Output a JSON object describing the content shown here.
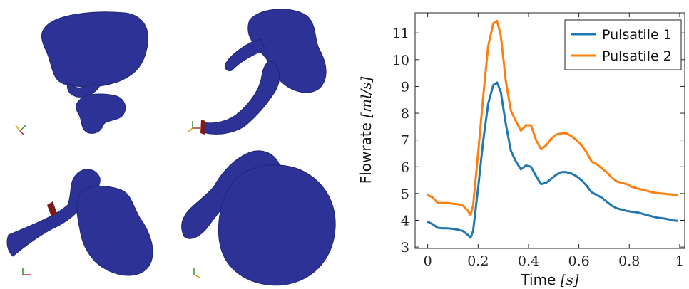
{
  "renders": [
    {
      "name": "aneurysm-render-top-left"
    },
    {
      "name": "aneurysm-render-top-right"
    },
    {
      "name": "aneurysm-render-bottom-left"
    },
    {
      "name": "aneurysm-render-bottom-right"
    }
  ],
  "colors": {
    "vessel": "#2d3396",
    "vessel_dark": "#1f2478",
    "vessel_highlight": "#4a52b8",
    "inlet_marker": "#7a1a1a",
    "axis": "#222222",
    "series1": "#1f77b4",
    "series2": "#ff7f0e"
  },
  "chart_data": {
    "type": "line",
    "title": "",
    "xlabel": "Time",
    "xlabel_unit": "[s]",
    "ylabel": "Flowrate",
    "ylabel_unit": "[ml/s]",
    "xlim": [
      -0.05,
      1.02
    ],
    "ylim": [
      2.95,
      11.75
    ],
    "xticks": [
      0,
      0.2,
      0.4,
      0.6,
      0.8,
      1
    ],
    "xtick_labels": [
      "0",
      "0.2",
      "0.4",
      "0.6",
      "0.8",
      "1"
    ],
    "yticks": [
      3,
      4,
      5,
      6,
      7,
      8,
      9,
      10,
      11
    ],
    "ytick_labels": [
      "3",
      "4",
      "5",
      "6",
      "7",
      "8",
      "9",
      "10",
      "11"
    ],
    "grid": false,
    "legend_position": "top-right",
    "series": [
      {
        "name": "Pulsatile 1",
        "color": "#1f77b4",
        "x": [
          0,
          0.02,
          0.04,
          0.06,
          0.08,
          0.1,
          0.12,
          0.14,
          0.16,
          0.17,
          0.18,
          0.2,
          0.22,
          0.24,
          0.26,
          0.275,
          0.29,
          0.31,
          0.33,
          0.35,
          0.37,
          0.39,
          0.41,
          0.43,
          0.45,
          0.47,
          0.49,
          0.51,
          0.53,
          0.55,
          0.57,
          0.59,
          0.61,
          0.63,
          0.65,
          0.67,
          0.69,
          0.71,
          0.73,
          0.75,
          0.77,
          0.79,
          0.81,
          0.83,
          0.85,
          0.87,
          0.89,
          0.91,
          0.93,
          0.95,
          0.97,
          0.99
        ],
        "y": [
          3.95,
          3.85,
          3.72,
          3.7,
          3.7,
          3.68,
          3.65,
          3.6,
          3.45,
          3.35,
          3.6,
          5.2,
          6.95,
          8.35,
          9.05,
          9.15,
          8.8,
          7.6,
          6.6,
          6.2,
          5.9,
          6.05,
          6.0,
          5.65,
          5.35,
          5.4,
          5.55,
          5.7,
          5.8,
          5.8,
          5.75,
          5.65,
          5.5,
          5.3,
          5.05,
          4.95,
          4.85,
          4.7,
          4.55,
          4.45,
          4.4,
          4.35,
          4.32,
          4.3,
          4.25,
          4.2,
          4.15,
          4.1,
          4.08,
          4.05,
          4.0,
          3.98
        ]
      },
      {
        "name": "Pulsatile 2",
        "color": "#ff7f0e",
        "x": [
          0,
          0.02,
          0.04,
          0.06,
          0.08,
          0.1,
          0.12,
          0.14,
          0.16,
          0.17,
          0.18,
          0.2,
          0.22,
          0.24,
          0.26,
          0.275,
          0.29,
          0.31,
          0.33,
          0.35,
          0.37,
          0.39,
          0.41,
          0.43,
          0.45,
          0.47,
          0.49,
          0.51,
          0.53,
          0.55,
          0.57,
          0.59,
          0.61,
          0.63,
          0.65,
          0.67,
          0.69,
          0.71,
          0.73,
          0.75,
          0.77,
          0.79,
          0.81,
          0.83,
          0.85,
          0.87,
          0.89,
          0.91,
          0.93,
          0.95,
          0.97,
          0.99
        ],
        "y": [
          4.95,
          4.85,
          4.65,
          4.65,
          4.65,
          4.62,
          4.6,
          4.55,
          4.35,
          4.2,
          4.55,
          6.5,
          8.6,
          10.5,
          11.35,
          11.45,
          10.9,
          9.2,
          8.1,
          7.7,
          7.35,
          7.55,
          7.55,
          7.0,
          6.65,
          6.8,
          7.05,
          7.2,
          7.25,
          7.25,
          7.15,
          7.0,
          6.8,
          6.55,
          6.2,
          6.1,
          5.95,
          5.8,
          5.6,
          5.45,
          5.4,
          5.35,
          5.25,
          5.2,
          5.15,
          5.1,
          5.05,
          5.02,
          5.0,
          4.98,
          4.96,
          4.95
        ]
      }
    ]
  }
}
